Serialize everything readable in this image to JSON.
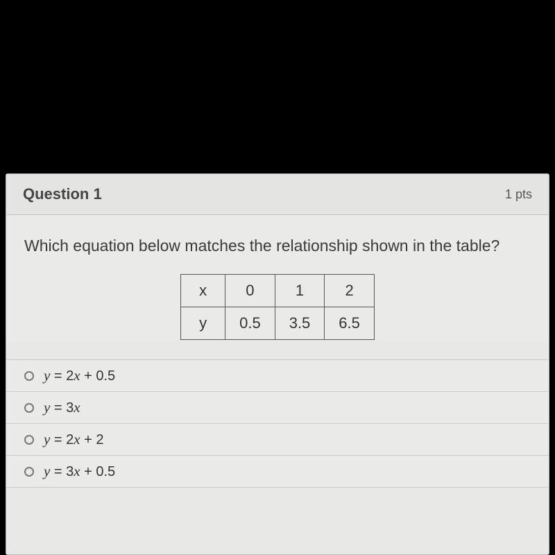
{
  "question": {
    "title": "Question 1",
    "points": "1 pts",
    "prompt": "Which equation below matches the relationship shown in the table?"
  },
  "table": {
    "type": "table",
    "border_color": "#555555",
    "background_color": "#eaeae8",
    "cell_fontsize": 22,
    "rows": [
      {
        "header": "x",
        "cells": [
          "0",
          "1",
          "2"
        ]
      },
      {
        "header": "y",
        "cells": [
          "0.5",
          "3.5",
          "6.5"
        ]
      }
    ]
  },
  "options": [
    {
      "var": "y",
      "eq": " = 2",
      "var2": "x",
      "tail": " + 0.5"
    },
    {
      "var": "y",
      "eq": " = 3",
      "var2": "x",
      "tail": ""
    },
    {
      "var": "y",
      "eq": " = 2",
      "var2": "x",
      "tail": " + 2"
    },
    {
      "var": "y",
      "eq": " = 3",
      "var2": "x",
      "tail": " + 0.5"
    }
  ],
  "colors": {
    "page_background": "#000000",
    "container_background": "#e8e8e6",
    "body_background": "#eaeae8",
    "border": "#b8b8b8",
    "divider": "#cacaca",
    "text": "#3a3a3a"
  }
}
